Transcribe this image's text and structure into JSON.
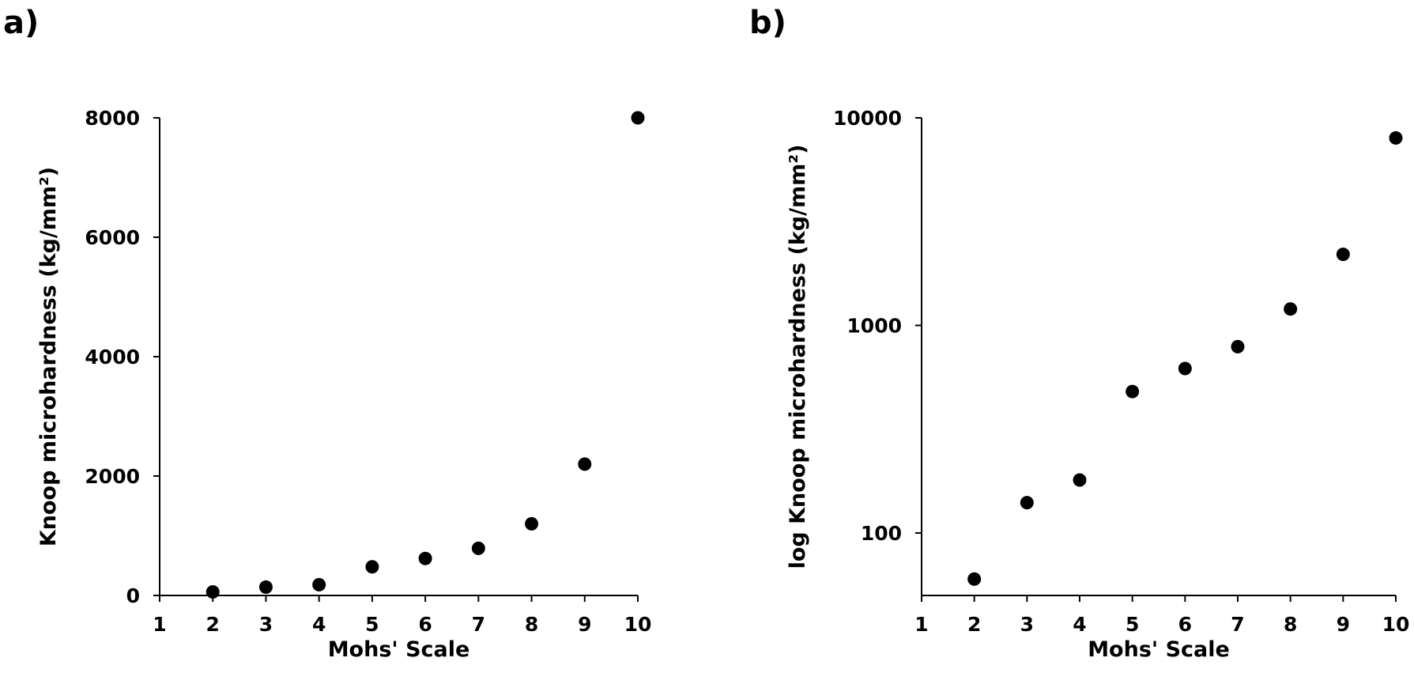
{
  "chart_data": [
    {
      "panel_label": "a)",
      "type": "scatter",
      "title": "",
      "xlabel": "Mohs' Scale",
      "ylabel": "Knoop microhardness (kg/mm²)",
      "xlim": [
        1,
        10
      ],
      "ylim": [
        0,
        8000
      ],
      "yscale": "linear",
      "xticks": [
        1,
        2,
        3,
        4,
        5,
        6,
        7,
        8,
        9,
        10
      ],
      "yticks": [
        0,
        2000,
        4000,
        6000,
        8000
      ],
      "grid": false,
      "legend": "none",
      "x": [
        2,
        3,
        4,
        5,
        6,
        7,
        8,
        9,
        10
      ],
      "y": [
        60,
        140,
        180,
        480,
        620,
        790,
        1200,
        2200,
        8000
      ]
    },
    {
      "panel_label": "b)",
      "type": "scatter",
      "title": "",
      "xlabel": "Mohs' Scale",
      "ylabel": "log Knoop microhardness (kg/mm²)",
      "xlim": [
        1,
        10
      ],
      "ylim": [
        50,
        10000
      ],
      "yscale": "log",
      "xticks": [
        1,
        2,
        3,
        4,
        5,
        6,
        7,
        8,
        9,
        10
      ],
      "yticks": [
        100,
        1000,
        10000
      ],
      "grid": false,
      "legend": "none",
      "x": [
        2,
        3,
        4,
        5,
        6,
        7,
        8,
        9,
        10
      ],
      "y": [
        60,
        140,
        180,
        480,
        620,
        790,
        1200,
        2200,
        8000
      ]
    }
  ]
}
